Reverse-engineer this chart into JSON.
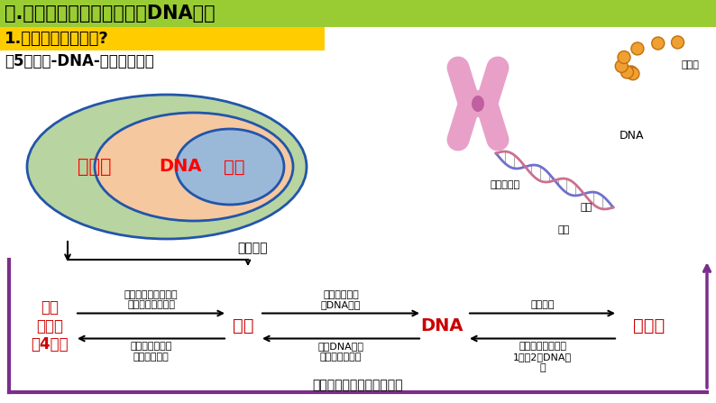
{
  "title1": "一.基因通常是有遗传效应的DNA片段",
  "title2": "1.基因的功能是什么?",
  "title3": "（5）基因-DNA-染色体的关系",
  "title1_bg": "#99cc33",
  "title2_bg": "#ffcc00",
  "label_染色体": "染色体",
  "label_DNA": "DNA",
  "label_基因": "基因",
  "label_基本单位": "基本单位",
  "node_脱氧核苷酸": "脱氧\n核苷酸\n（4种）",
  "node_基因": "基因",
  "node_DNA": "DNA",
  "node_染色体": "染色体",
  "arrow1_up": "特定脱氧核苷酸排列\n顺序代表遗传信息",
  "arrow1_down": "每个基因含许多\n个脱氧核苷酸",
  "arrow2_up": "具有遗传效应\n的DNA片段",
  "arrow2_down": "每个DNA分子\n中含许多个基因",
  "arrow3_up": "主要载体",
  "arrow3_down": "每条染色体上含有\n1个或2个DNA分\n子",
  "bottom_text": "基因在染色体上呈线性排列",
  "label_中期染色体": "中期染色体",
  "label_蛋白质": "蛋白质",
  "label_DNA_right": "DNA",
  "label_基因_r1": "基因",
  "label_基因_r2": "基因",
  "bg_color": "#ffffff",
  "frame_color": "#7b2d8b"
}
